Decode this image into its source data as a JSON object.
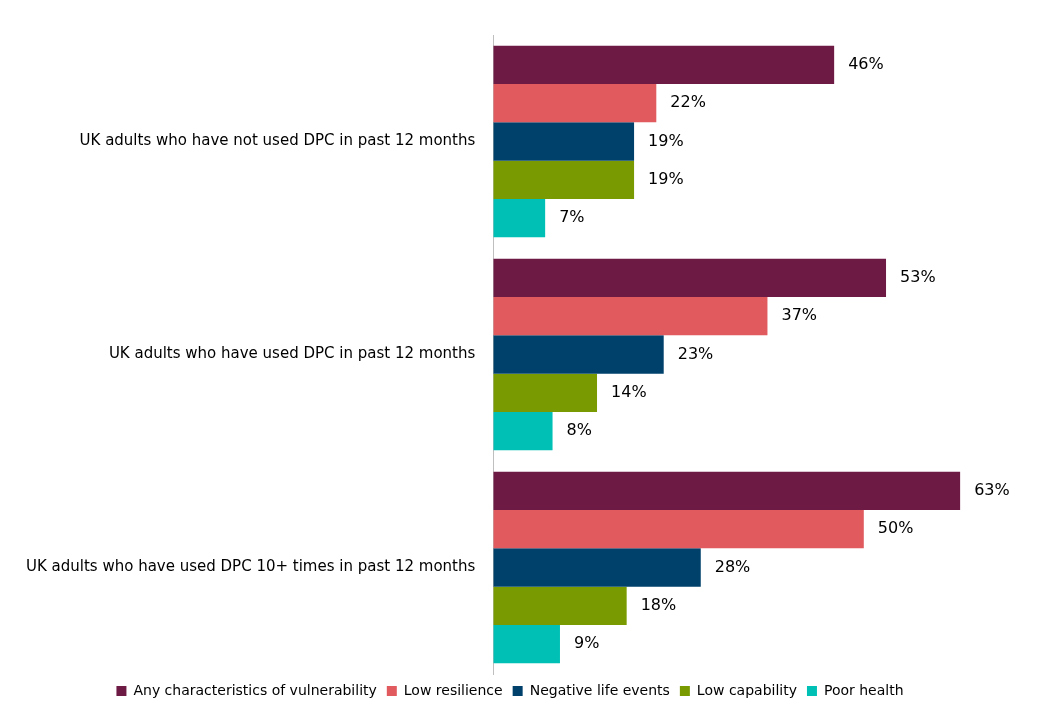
{
  "chart_data": {
    "type": "bar",
    "orientation": "horizontal",
    "categories": [
      "UK adults who have not used DPC in past 12 months",
      "UK adults who have used DPC in past 12 months",
      "UK adults who have used DPC 10+ times in past 12 months"
    ],
    "series": [
      {
        "name": "Any characteristics of vulnerability",
        "color": "#6d1a45",
        "values": [
          46,
          53,
          63
        ],
        "value_labels": [
          "46%",
          "53%",
          "63%"
        ]
      },
      {
        "name": "Low resilience",
        "color": "#e05a5e",
        "values": [
          22,
          37,
          50
        ],
        "value_labels": [
          "22%",
          "37%",
          "50%"
        ]
      },
      {
        "name": "Negative life events",
        "color": "#00416b",
        "values": [
          19,
          23,
          28
        ],
        "value_labels": [
          "19%",
          "23%",
          "28%"
        ]
      },
      {
        "name": "Low capability",
        "color": "#7a9a01",
        "values": [
          19,
          14,
          18
        ],
        "value_labels": [
          "19%",
          "14%",
          "18%"
        ]
      },
      {
        "name": "Poor health",
        "color": "#00c0b5",
        "values": [
          7,
          8,
          9
        ],
        "value_labels": [
          "7%",
          "8%",
          "9%"
        ]
      }
    ],
    "legend": "bottom"
  }
}
